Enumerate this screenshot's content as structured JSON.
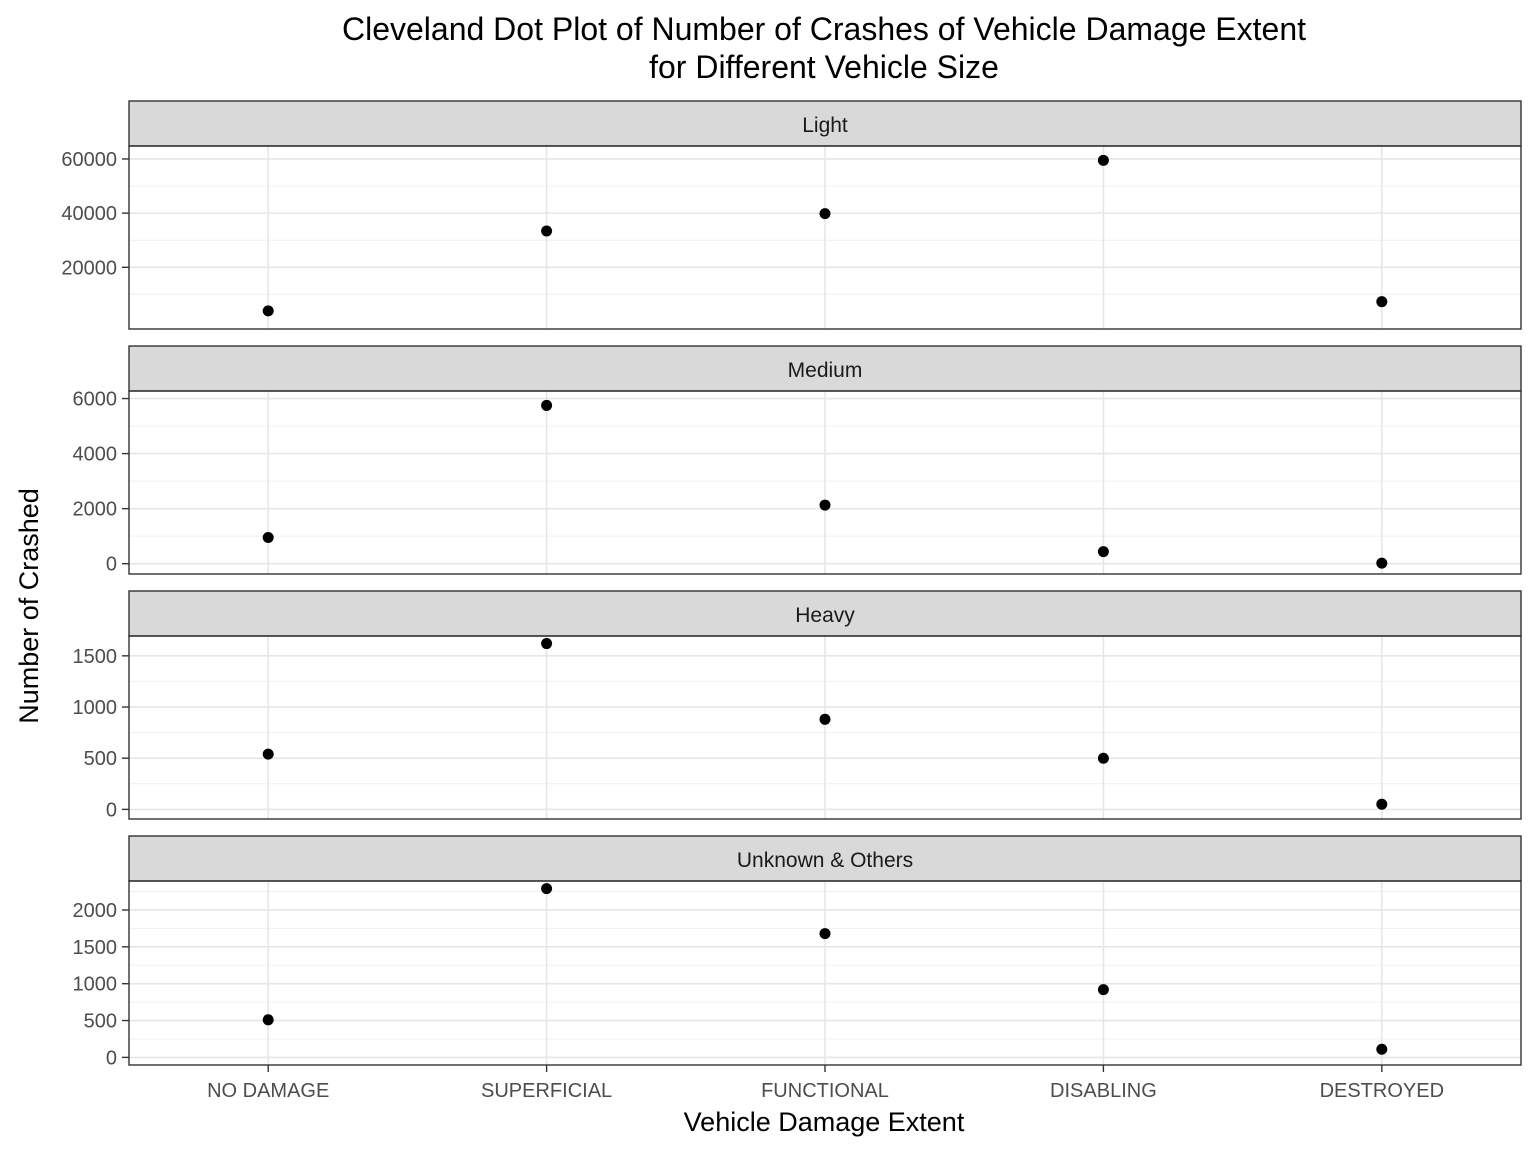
{
  "chart_data": {
    "type": "scatter",
    "title_line1": "Cleveland Dot Plot of Number of Crashes of Vehicle Damage Extent",
    "title_line2": "for Different Vehicle Size",
    "xlabel": "Vehicle Damage Extent",
    "ylabel": "Number of Crashed",
    "categories": [
      "NO DAMAGE",
      "SUPERFICIAL",
      "FUNCTIONAL",
      "DISABLING",
      "DESTROYED"
    ],
    "grid": true,
    "facet_scales": "free_y",
    "panels": [
      {
        "name": "Light",
        "ylim": [
          0,
          62000
        ],
        "yticks": [
          20000,
          40000,
          60000
        ],
        "values": [
          3900,
          33400,
          39800,
          59500,
          7300
        ]
      },
      {
        "name": "Medium",
        "ylim": [
          -100,
          6000
        ],
        "yticks": [
          0,
          2000,
          4000,
          6000
        ],
        "values": [
          950,
          5750,
          2130,
          440,
          20
        ]
      },
      {
        "name": "Heavy",
        "ylim": [
          -20,
          1620
        ],
        "yticks": [
          0,
          500,
          1000,
          1500
        ],
        "values": [
          540,
          1620,
          880,
          500,
          50
        ]
      },
      {
        "name": "Unknown & Others",
        "ylim": [
          0,
          2290
        ],
        "yticks": [
          0,
          500,
          1000,
          1500,
          2000
        ],
        "values": [
          510,
          2290,
          1680,
          920,
          110
        ]
      }
    ]
  }
}
